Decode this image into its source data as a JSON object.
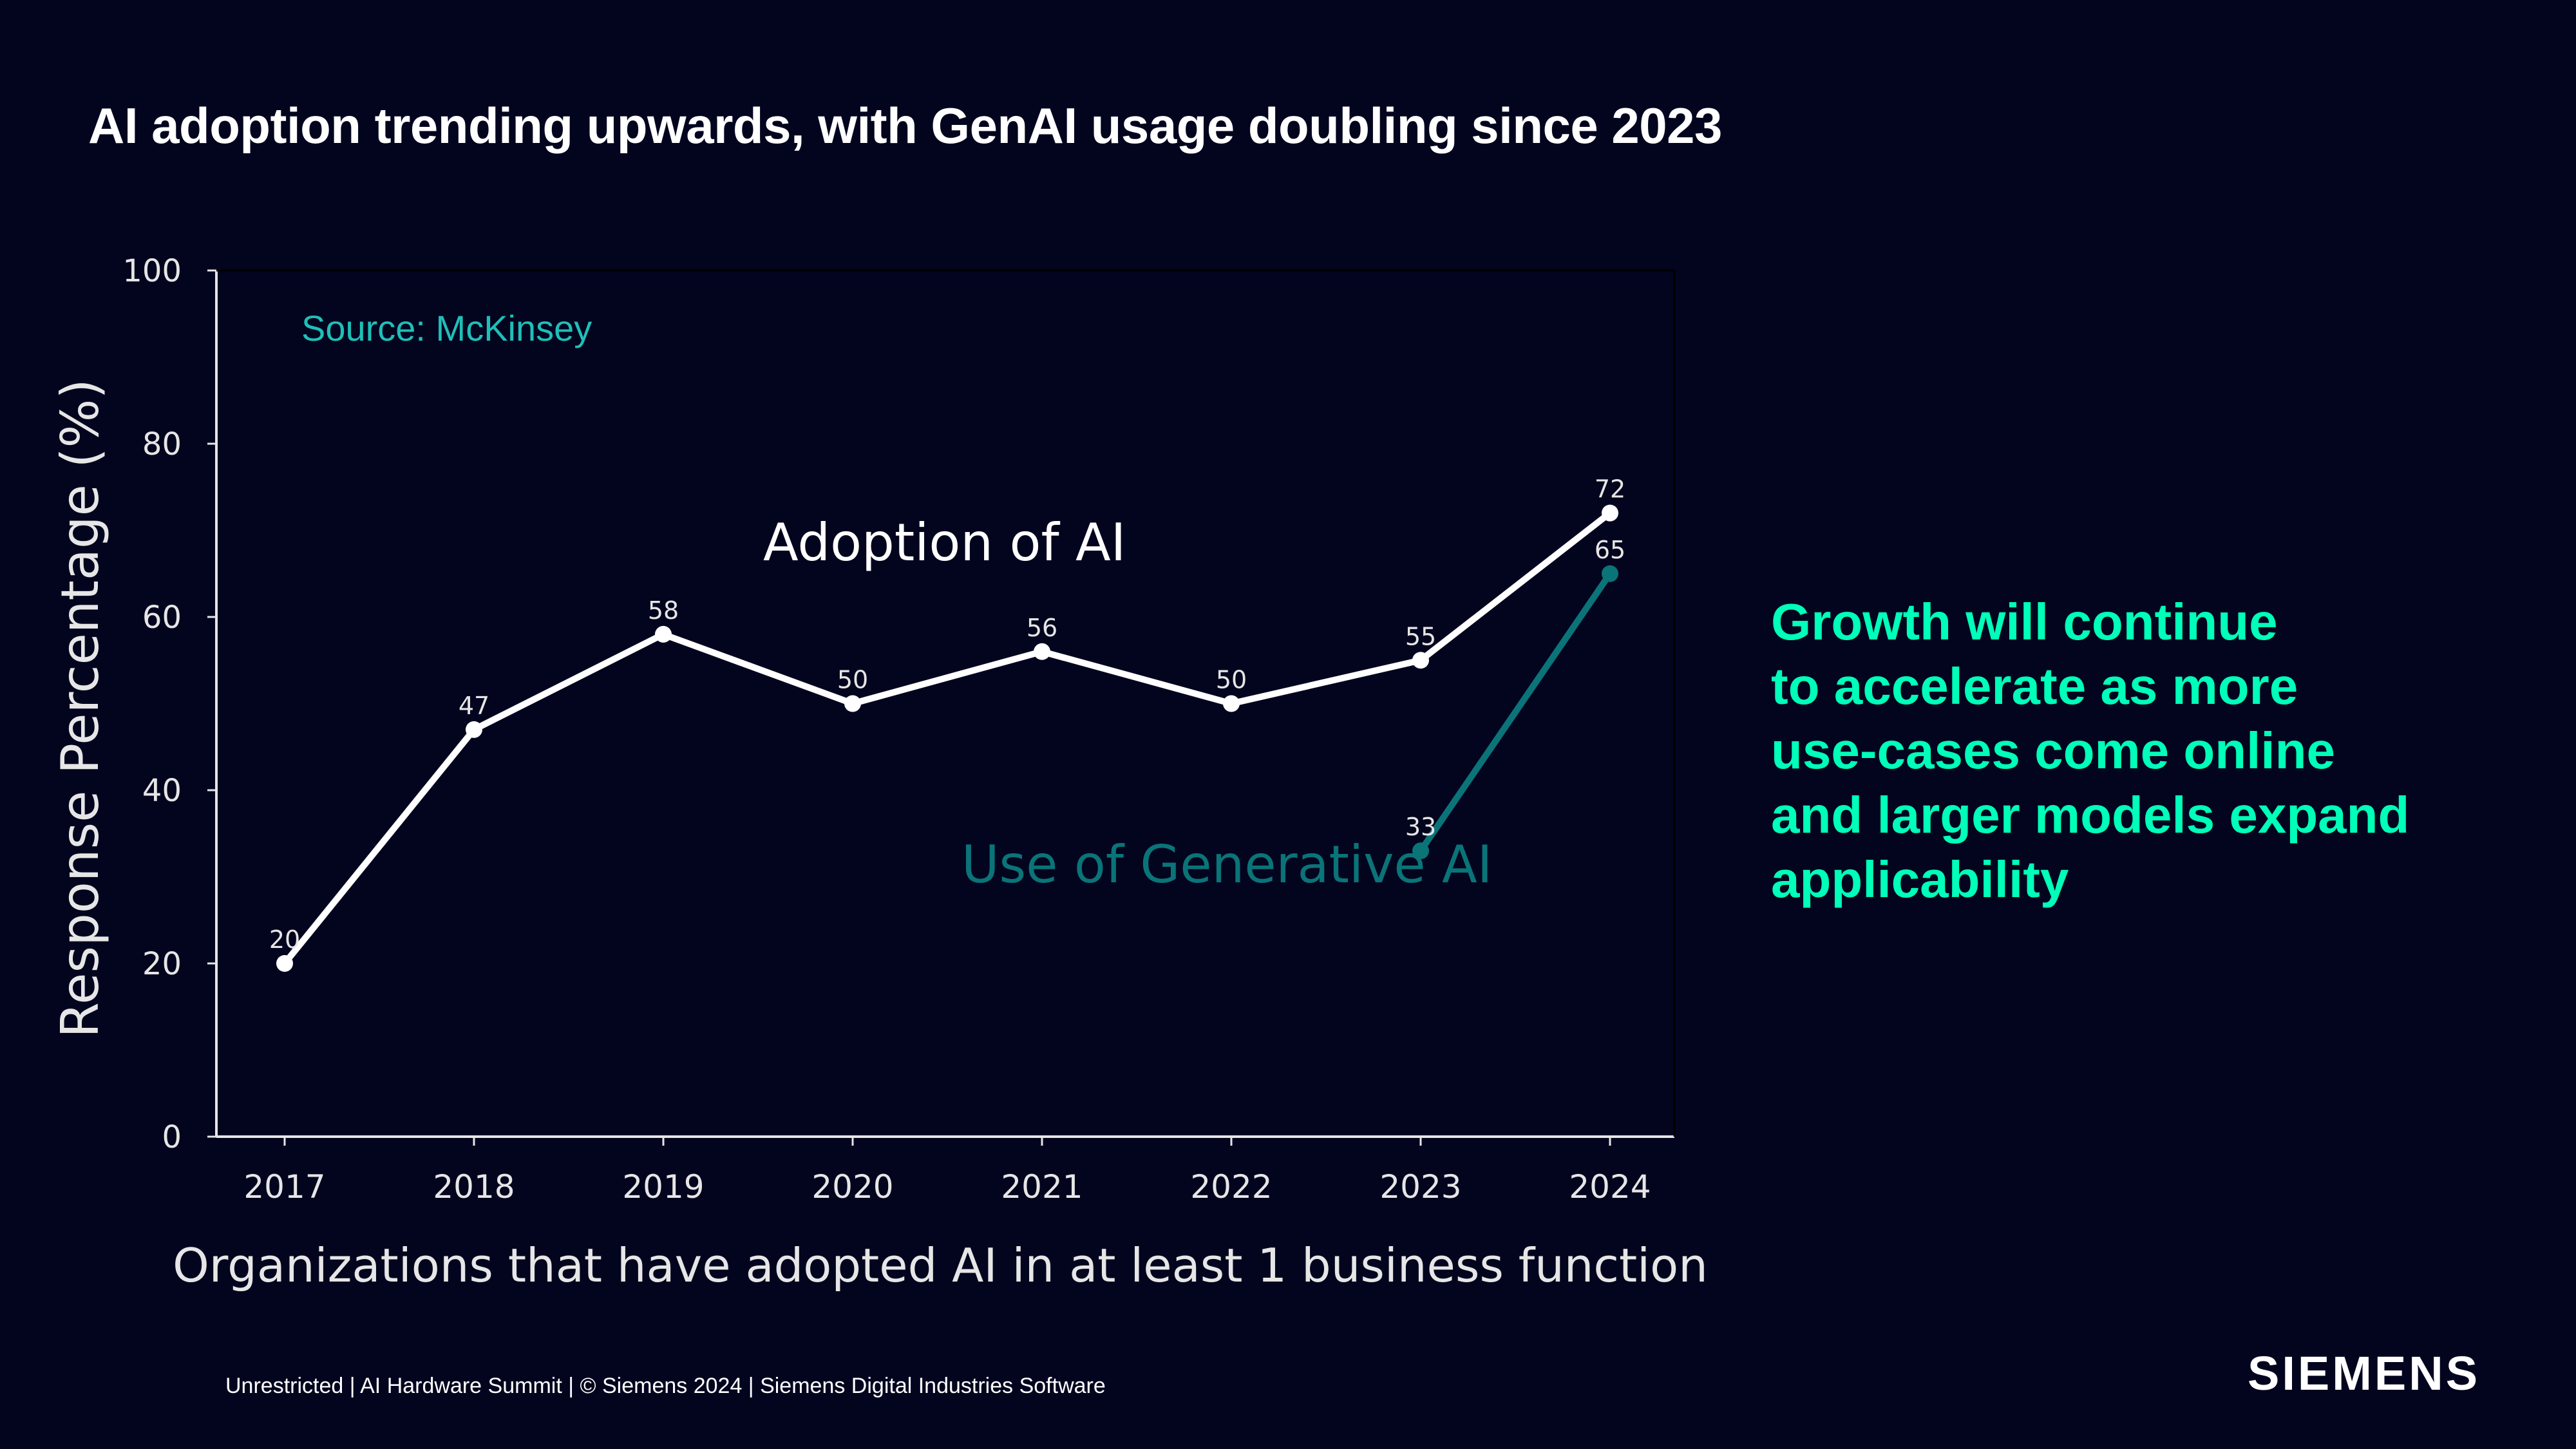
{
  "slide": {
    "title": "AI adoption trending upwards, with GenAI usage doubling since 2023",
    "side_note": [
      "Growth will continue",
      "to accelerate as more",
      "use-cases come online",
      "and larger models expand",
      "applicability"
    ],
    "footer": "Unrestricted | AI Hardware Summit | © Siemens 2024 | Siemens Digital Industries Software",
    "logo": "SIEMENS"
  },
  "colors": {
    "background": "#03051f",
    "title": "#ffffff",
    "side_note": "#00ffb9",
    "adoption_series": "#ffffff",
    "genai_series": "#0a7478",
    "source_note": "#1fbfb8",
    "axis": "#e6e6e6"
  },
  "chart_data": {
    "type": "line",
    "xlabel": "Organizations that have adopted AI in at least 1 business function",
    "ylabel": "Response Percentage (%)",
    "ylim": [
      0,
      100
    ],
    "yticks": [
      0,
      20,
      40,
      60,
      80,
      100
    ],
    "categories": [
      "2017",
      "2018",
      "2019",
      "2020",
      "2021",
      "2022",
      "2023",
      "2024"
    ],
    "source_note": "Source: McKinsey",
    "grid": false,
    "series": [
      {
        "name": "Adoption of AI",
        "x": [
          "2017",
          "2018",
          "2019",
          "2020",
          "2021",
          "2022",
          "2023",
          "2024"
        ],
        "values": [
          20,
          47,
          58,
          50,
          56,
          50,
          55,
          72
        ],
        "color": "#ffffff"
      },
      {
        "name": "Use of Generative AI",
        "x": [
          "2023",
          "2024"
        ],
        "values": [
          33,
          65
        ],
        "color": "#0a7478"
      }
    ]
  }
}
